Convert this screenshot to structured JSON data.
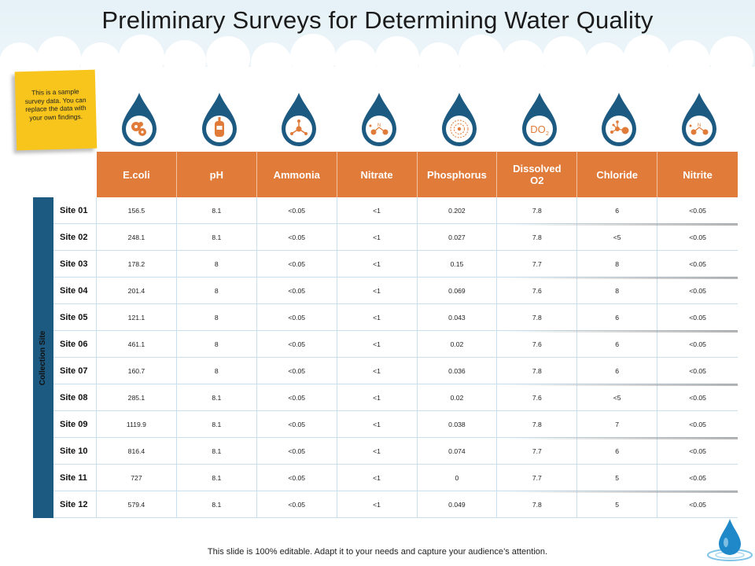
{
  "title": "Preliminary Surveys for Determining Water Quality",
  "note": "This is a sample survey data. You can replace the data with your own findings.",
  "side_label": "Collection Site",
  "footer": "This slide is 100% editable. Adapt it to your needs and capture your audience’s attention.",
  "colors": {
    "drop": "#1d5a82",
    "accent": "#e07b39",
    "header_bg": "#e07b39",
    "sidebar_bg": "#1d5a82",
    "sticky": "#f7c51c"
  },
  "icons": [
    "bacteria-icon",
    "ph-meter-icon",
    "molecule-icon",
    "nitrate-molecule-icon",
    "atom-icon",
    "do2-icon",
    "chloride-molecule-icon",
    "nitrite-molecule-icon"
  ],
  "do2_text": "DO",
  "do2_sub": "2",
  "n_text": "N",
  "columns": [
    "E.coli",
    "pH",
    "Ammonia",
    "Nitrate",
    "Phosphorus",
    "Dissolved O2",
    "Chloride",
    "Nitrite"
  ],
  "rows": [
    {
      "site": "Site 01",
      "values": [
        "156.5",
        "8.1",
        "<0.05",
        "<1",
        "0.202",
        "7.8",
        "6",
        "<0.05"
      ]
    },
    {
      "site": "Site 02",
      "values": [
        "248.1",
        "8.1",
        "<0.05",
        "<1",
        "0.027",
        "7.8",
        "<5",
        "<0.05"
      ]
    },
    {
      "site": "Site 03",
      "values": [
        "178.2",
        "8",
        "<0.05",
        "<1",
        "0.15",
        "7.7",
        "8",
        "<0.05"
      ]
    },
    {
      "site": "Site 04",
      "values": [
        "201.4",
        "8",
        "<0.05",
        "<1",
        "0.069",
        "7.6",
        "8",
        "<0.05"
      ]
    },
    {
      "site": "Site 05",
      "values": [
        "121.1",
        "8",
        "<0.05",
        "<1",
        "0.043",
        "7.8",
        "6",
        "<0.05"
      ]
    },
    {
      "site": "Site 06",
      "values": [
        "461.1",
        "8",
        "<0.05",
        "<1",
        "0.02",
        "7.6",
        "6",
        "<0.05"
      ]
    },
    {
      "site": "Site 07",
      "values": [
        "160.7",
        "8",
        "<0.05",
        "<1",
        "0.036",
        "7.8",
        "6",
        "<0.05"
      ]
    },
    {
      "site": "Site 08",
      "values": [
        "285.1",
        "8.1",
        "<0.05",
        "<1",
        "0.02",
        "7.6",
        "<5",
        "<0.05"
      ]
    },
    {
      "site": "Site 09",
      "values": [
        "1119.9",
        "8.1",
        "<0.05",
        "<1",
        "0.038",
        "7.8",
        "7",
        "<0.05"
      ]
    },
    {
      "site": "Site 10",
      "values": [
        "816.4",
        "8.1",
        "<0.05",
        "<1",
        "0.074",
        "7.7",
        "6",
        "<0.05"
      ]
    },
    {
      "site": "Site 11",
      "values": [
        "727",
        "8.1",
        "<0.05",
        "<1",
        "0",
        "7.7",
        "5",
        "<0.05"
      ]
    },
    {
      "site": "Site 12",
      "values": [
        "579.4",
        "8.1",
        "<0.05",
        "<1",
        "0.049",
        "7.8",
        "5",
        "<0.05"
      ]
    }
  ]
}
